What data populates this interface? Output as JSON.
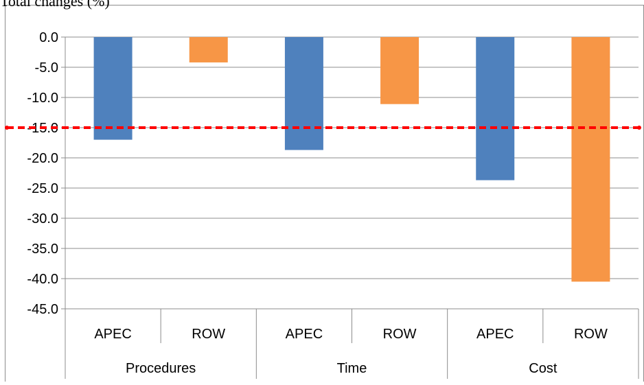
{
  "chart_data": {
    "type": "bar",
    "title": "Total changes (%)",
    "categories": [
      {
        "group": "Procedures",
        "label": "APEC",
        "value": -17.0,
        "color": "#4f81bd"
      },
      {
        "group": "Procedures",
        "label": "ROW",
        "value": -4.2,
        "color": "#f79646"
      },
      {
        "group": "Time",
        "label": "APEC",
        "value": -18.7,
        "color": "#4f81bd"
      },
      {
        "group": "Time",
        "label": "ROW",
        "value": -11.1,
        "color": "#f79646"
      },
      {
        "group": "Cost",
        "label": "APEC",
        "value": -23.7,
        "color": "#4f81bd"
      },
      {
        "group": "Cost",
        "label": "ROW",
        "value": -40.5,
        "color": "#f79646"
      }
    ],
    "groups": [
      "Procedures",
      "Time",
      "Cost"
    ],
    "yticks": [
      "0.0",
      "-5.0",
      "-10.0",
      "-15.0",
      "-20.0",
      "-25.0",
      "-30.0",
      "-35.0",
      "-40.0",
      "-45.0"
    ],
    "ylim": [
      -45,
      0
    ],
    "reference_line": {
      "value": -15,
      "color": "#ff0000",
      "style": "dashed"
    },
    "grid": true,
    "legend": "none"
  }
}
